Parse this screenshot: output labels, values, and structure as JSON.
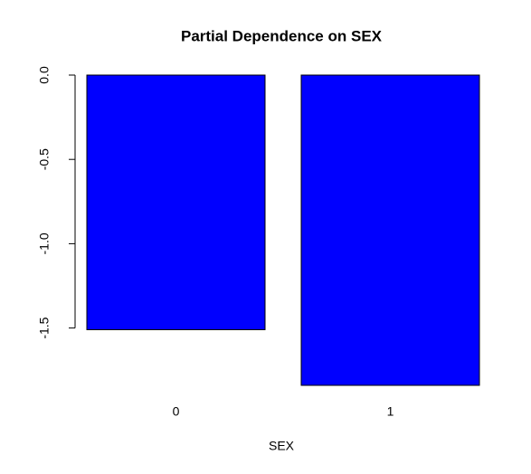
{
  "chart_data": {
    "type": "bar",
    "title": "Partial Dependence on SEX",
    "xlabel": "SEX",
    "categories": [
      "0",
      "1"
    ],
    "values": [
      -1.51,
      -1.84
    ],
    "color": "#0000ff",
    "ylim": [
      -1.84,
      0
    ],
    "yticks": [
      {
        "value": 0,
        "label": "0.0"
      },
      -0.5,
      {
        "value": -1.0,
        "label": "-1.0"
      },
      -1.5
    ]
  }
}
